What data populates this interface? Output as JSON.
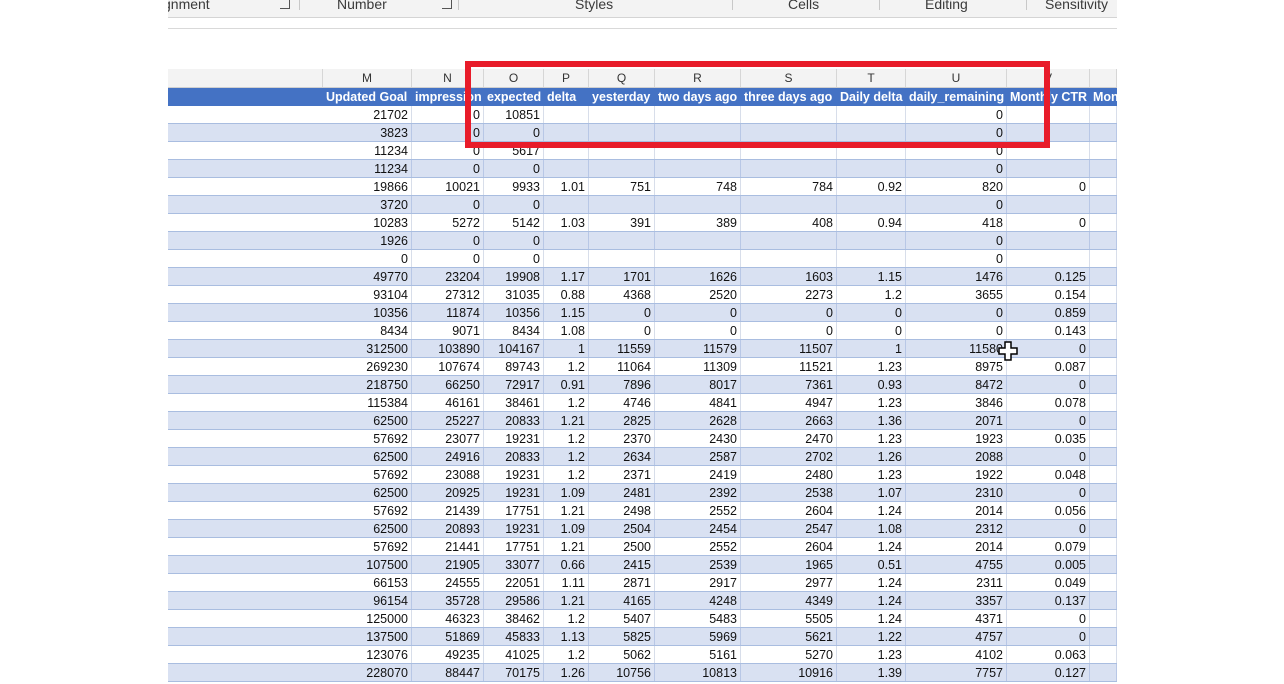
{
  "ribbon": {
    "groups": [
      "gnment",
      "Number",
      "Styles",
      "Cells",
      "Editing",
      "Sensitivity"
    ]
  },
  "columns": [
    {
      "letter": "M"
    },
    {
      "letter": "N"
    },
    {
      "letter": "O"
    },
    {
      "letter": "P"
    },
    {
      "letter": "Q"
    },
    {
      "letter": "R"
    },
    {
      "letter": "S"
    },
    {
      "letter": "T"
    },
    {
      "letter": "U"
    },
    {
      "letter": "V"
    },
    {
      "letter": ""
    }
  ],
  "header_row": [
    "Updated Goal",
    "impression",
    "expected",
    "delta",
    "yesterday",
    "two days ago",
    "three days ago",
    "Daily delta",
    "daily_remaining",
    "Monthly CTR",
    "Mon"
  ],
  "rows": [
    [
      "21702",
      "0",
      "10851",
      "",
      "",
      "",
      "",
      "",
      "0",
      "",
      ""
    ],
    [
      "3823",
      "0",
      "0",
      "",
      "",
      "",
      "",
      "",
      "0",
      "",
      ""
    ],
    [
      "11234",
      "0",
      "5617",
      "",
      "",
      "",
      "",
      "",
      "0",
      "",
      ""
    ],
    [
      "11234",
      "0",
      "0",
      "",
      "",
      "",
      "",
      "",
      "0",
      "",
      ""
    ],
    [
      "19866",
      "10021",
      "9933",
      "1.01",
      "751",
      "748",
      "784",
      "0.92",
      "820",
      "0",
      ""
    ],
    [
      "3720",
      "0",
      "0",
      "",
      "",
      "",
      "",
      "",
      "0",
      "",
      ""
    ],
    [
      "10283",
      "5272",
      "5142",
      "1.03",
      "391",
      "389",
      "408",
      "0.94",
      "418",
      "0",
      ""
    ],
    [
      "1926",
      "0",
      "0",
      "",
      "",
      "",
      "",
      "",
      "0",
      "",
      ""
    ],
    [
      "0",
      "0",
      "0",
      "",
      "",
      "",
      "",
      "",
      "0",
      "",
      ""
    ],
    [
      "49770",
      "23204",
      "19908",
      "1.17",
      "1701",
      "1626",
      "1603",
      "1.15",
      "1476",
      "0.125",
      ""
    ],
    [
      "93104",
      "27312",
      "31035",
      "0.88",
      "4368",
      "2520",
      "2273",
      "1.2",
      "3655",
      "0.154",
      ""
    ],
    [
      "10356",
      "11874",
      "10356",
      "1.15",
      "0",
      "0",
      "0",
      "0",
      "0",
      "0.859",
      ""
    ],
    [
      "8434",
      "9071",
      "8434",
      "1.08",
      "0",
      "0",
      "0",
      "0",
      "0",
      "0.143",
      ""
    ],
    [
      "312500",
      "103890",
      "104167",
      "1",
      "11559",
      "11579",
      "11507",
      "1",
      "11580",
      "0",
      ""
    ],
    [
      "269230",
      "107674",
      "89743",
      "1.2",
      "11064",
      "11309",
      "11521",
      "1.23",
      "8975",
      "0.087",
      ""
    ],
    [
      "218750",
      "66250",
      "72917",
      "0.91",
      "7896",
      "8017",
      "7361",
      "0.93",
      "8472",
      "0",
      ""
    ],
    [
      "115384",
      "46161",
      "38461",
      "1.2",
      "4746",
      "4841",
      "4947",
      "1.23",
      "3846",
      "0.078",
      ""
    ],
    [
      "62500",
      "25227",
      "20833",
      "1.21",
      "2825",
      "2628",
      "2663",
      "1.36",
      "2071",
      "0",
      ""
    ],
    [
      "57692",
      "23077",
      "19231",
      "1.2",
      "2370",
      "2430",
      "2470",
      "1.23",
      "1923",
      "0.035",
      ""
    ],
    [
      "62500",
      "24916",
      "20833",
      "1.2",
      "2634",
      "2587",
      "2702",
      "1.26",
      "2088",
      "0",
      ""
    ],
    [
      "57692",
      "23088",
      "19231",
      "1.2",
      "2371",
      "2419",
      "2480",
      "1.23",
      "1922",
      "0.048",
      ""
    ],
    [
      "62500",
      "20925",
      "19231",
      "1.09",
      "2481",
      "2392",
      "2538",
      "1.07",
      "2310",
      "0",
      ""
    ],
    [
      "57692",
      "21439",
      "17751",
      "1.21",
      "2498",
      "2552",
      "2604",
      "1.24",
      "2014",
      "0.056",
      ""
    ],
    [
      "62500",
      "20893",
      "19231",
      "1.09",
      "2504",
      "2454",
      "2547",
      "1.08",
      "2312",
      "0",
      ""
    ],
    [
      "57692",
      "21441",
      "17751",
      "1.21",
      "2500",
      "2552",
      "2604",
      "1.24",
      "2014",
      "0.079",
      ""
    ],
    [
      "107500",
      "21905",
      "33077",
      "0.66",
      "2415",
      "2539",
      "1965",
      "0.51",
      "4755",
      "0.005",
      ""
    ],
    [
      "66153",
      "24555",
      "22051",
      "1.11",
      "2871",
      "2917",
      "2977",
      "1.24",
      "2311",
      "0.049",
      ""
    ],
    [
      "96154",
      "35728",
      "29586",
      "1.21",
      "4165",
      "4248",
      "4349",
      "1.24",
      "3357",
      "0.137",
      ""
    ],
    [
      "125000",
      "46323",
      "38462",
      "1.2",
      "5407",
      "5483",
      "5505",
      "1.24",
      "4371",
      "0",
      ""
    ],
    [
      "137500",
      "51869",
      "45833",
      "1.13",
      "5825",
      "5969",
      "5621",
      "1.22",
      "4757",
      "0",
      ""
    ],
    [
      "123076",
      "49235",
      "41025",
      "1.2",
      "5062",
      "5161",
      "5270",
      "1.23",
      "4102",
      "0.063",
      ""
    ],
    [
      "228070",
      "88447",
      "70175",
      "1.26",
      "10756",
      "10813",
      "10916",
      "1.39",
      "7757",
      "0.127",
      ""
    ]
  ],
  "colors": {
    "header_fill": "#4472c4",
    "band_fill": "#d9e1f2",
    "highlight_border": "#e81c2a"
  }
}
